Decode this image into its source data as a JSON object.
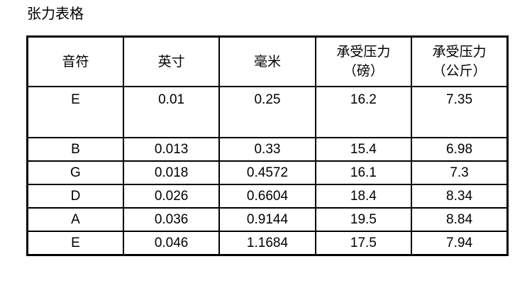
{
  "page": {
    "title": "张力表格",
    "background_color": "#ffffff",
    "border_color": "#000000",
    "text_color": "#000000"
  },
  "table": {
    "columns": [
      {
        "key": "note",
        "label": "音符",
        "lines": [
          "音符"
        ]
      },
      {
        "key": "inches",
        "label": "英寸",
        "lines": [
          "英寸"
        ]
      },
      {
        "key": "millimeters",
        "label": "毫米",
        "lines": [
          "毫米"
        ]
      },
      {
        "key": "pressure-pounds",
        "label": "承受压力（磅）",
        "lines": [
          "承受压力",
          "（磅）"
        ]
      },
      {
        "key": "pressure-kilograms",
        "label": "承受压力（公斤）",
        "lines": [
          "承受压力",
          "（公斤）"
        ]
      }
    ],
    "rows": [
      {
        "tall": true,
        "cells": [
          "E",
          "0.01",
          "0.25",
          "16.2",
          "7.35"
        ]
      },
      {
        "tall": false,
        "cells": [
          "B",
          "0.013",
          "0.33",
          "15.4",
          "6.98"
        ]
      },
      {
        "tall": false,
        "cells": [
          "G",
          "0.018",
          "0.4572",
          "16.1",
          "7.3"
        ]
      },
      {
        "tall": false,
        "cells": [
          "D",
          "0.026",
          "0.6604",
          "18.4",
          "8.34"
        ]
      },
      {
        "tall": false,
        "cells": [
          "A",
          "0.036",
          "0.9144",
          "19.5",
          "8.84"
        ]
      },
      {
        "tall": false,
        "cells": [
          "E",
          "0.046",
          "1.1684",
          "17.5",
          "7.94"
        ]
      }
    ]
  },
  "chart_data": {
    "type": "table",
    "title": "张力表格",
    "columns": [
      "音符",
      "英寸",
      "毫米",
      "承受压力（磅）",
      "承受压力（公斤）"
    ],
    "rows": [
      [
        "E",
        0.01,
        0.25,
        16.2,
        7.35
      ],
      [
        "B",
        0.013,
        0.33,
        15.4,
        6.98
      ],
      [
        "G",
        0.018,
        0.4572,
        16.1,
        7.3
      ],
      [
        "D",
        0.026,
        0.6604,
        18.4,
        8.34
      ],
      [
        "A",
        0.036,
        0.9144,
        19.5,
        8.84
      ],
      [
        "E",
        0.046,
        1.1684,
        17.5,
        7.94
      ]
    ]
  }
}
